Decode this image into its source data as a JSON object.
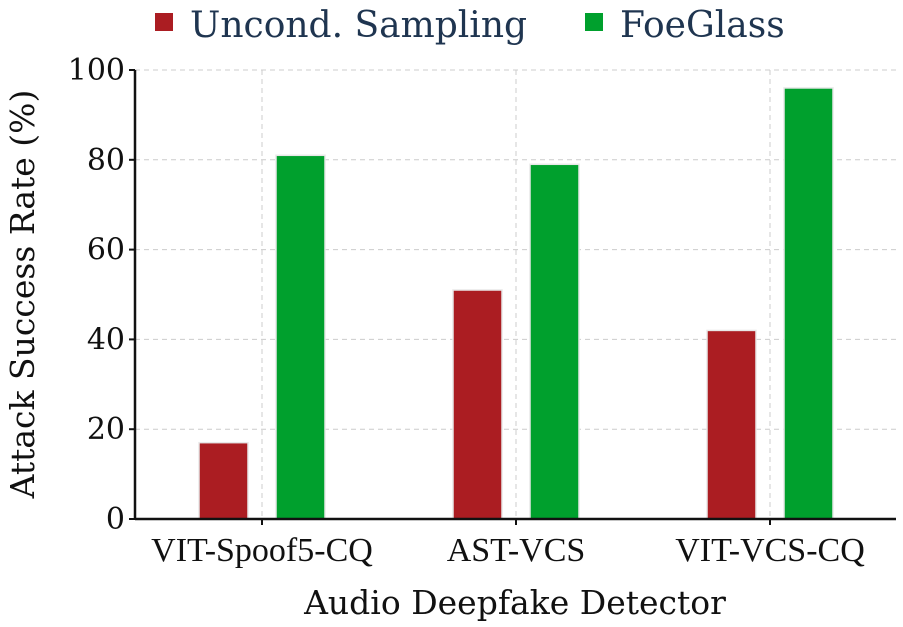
{
  "chart_data": {
    "type": "bar",
    "categories": [
      "VIT-Spoof5-CQ",
      "AST-VCS",
      "VIT-VCS-CQ"
    ],
    "series": [
      {
        "name": "Uncond. Sampling",
        "color": "#ab1d22",
        "values": [
          17,
          51,
          42
        ]
      },
      {
        "name": "FoeGlass",
        "color": "#00a02d",
        "values": [
          81,
          79,
          96
        ]
      }
    ],
    "xlabel": "Audio Deepfake Detector",
    "ylabel": "Attack Success Rate (%)",
    "ylim": [
      0,
      100
    ],
    "yticks": [
      0,
      20,
      40,
      60,
      80,
      100
    ],
    "grid": true,
    "legend_position": "top-center"
  }
}
